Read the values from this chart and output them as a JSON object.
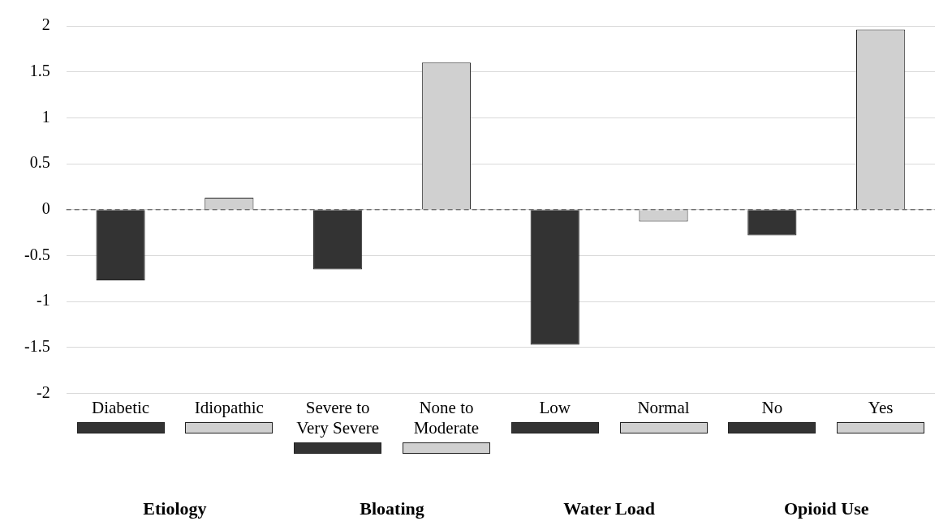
{
  "chart_data": {
    "type": "bar",
    "categories": [
      "Diabetic",
      "Idiopathic",
      "Severe to Very Severe",
      "None to Moderate",
      "Low",
      "Normal",
      "No",
      "Yes"
    ],
    "values": [
      -0.77,
      0.13,
      -0.65,
      1.6,
      -1.47,
      -0.13,
      -0.28,
      1.96
    ],
    "colors": [
      "#333333",
      "#d0d0d0",
      "#333333",
      "#d0d0d0",
      "#333333",
      "#d0d0d0",
      "#333333",
      "#d0d0d0"
    ],
    "ylim": [
      -2,
      2
    ],
    "yticks": [
      -2,
      -1.5,
      -1,
      -0.5,
      0,
      0.5,
      1,
      1.5,
      2
    ],
    "grid": "y",
    "legend": false,
    "ref_lines": [
      {
        "axis": "y",
        "value": 0,
        "color": "#444444",
        "line_style": "dashed"
      }
    ],
    "annotations": [
      "Etiology",
      "Bloating",
      "Water Load",
      "Opioid Use"
    ]
  }
}
